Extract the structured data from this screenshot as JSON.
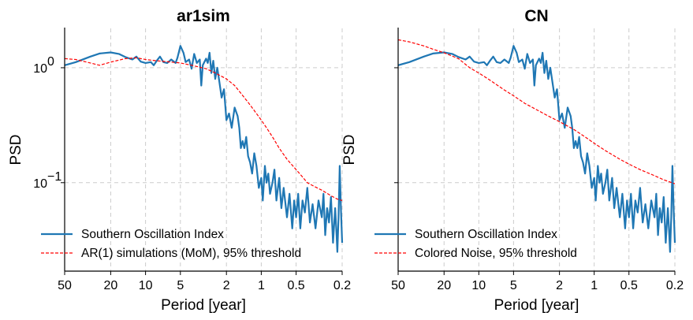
{
  "chart_data": [
    {
      "type": "line",
      "title": "ar1sim",
      "xlabel": "Period [year]",
      "ylabel": "PSD",
      "x_scale": "log",
      "y_scale": "log",
      "x_reversed": true,
      "xlim": [
        50,
        0.2
      ],
      "ylim": [
        0.017,
        2.2
      ],
      "x_ticks": [
        50,
        20,
        10,
        5,
        2,
        1,
        0.5,
        0.2
      ],
      "x_tick_labels": [
        "50",
        "20",
        "10",
        "5",
        "2",
        "1",
        "0.5",
        "0.2"
      ],
      "y_ticks": [
        1,
        0.1
      ],
      "y_tick_labels": [
        {
          "base": "10",
          "exp": "0"
        },
        {
          "base": "10",
          "exp": "−1"
        }
      ],
      "grid": true,
      "legend_position": "lower-left",
      "series": [
        {
          "name": "Southern Oscillation Index",
          "style": "solid",
          "color": "#1f77b4",
          "points": [
            [
              50,
              1.05
            ],
            [
              40,
              1.12
            ],
            [
              30,
              1.25
            ],
            [
              25,
              1.33
            ],
            [
              20,
              1.36
            ],
            [
              17,
              1.32
            ],
            [
              15,
              1.24
            ],
            [
              13,
              1.18
            ],
            [
              12,
              1.25
            ],
            [
              11,
              1.13
            ],
            [
              10,
              1.1
            ],
            [
              9,
              1.12
            ],
            [
              8.5,
              1.05
            ],
            [
              8,
              1.15
            ],
            [
              7.5,
              1.25
            ],
            [
              7,
              1.12
            ],
            [
              6.5,
              1.1
            ],
            [
              6,
              1.18
            ],
            [
              5.5,
              1.1
            ],
            [
              5.3,
              1.22
            ],
            [
              5,
              1.55
            ],
            [
              4.7,
              1.35
            ],
            [
              4.5,
              1.12
            ],
            [
              4.2,
              1.18
            ],
            [
              4,
              0.98
            ],
            [
              3.8,
              1.32
            ],
            [
              3.6,
              1.1
            ],
            [
              3.4,
              1.18
            ],
            [
              3.3,
              0.7
            ],
            [
              3.2,
              1.05
            ],
            [
              3,
              1.2
            ],
            [
              2.9,
              1.1
            ],
            [
              2.8,
              1.35
            ],
            [
              2.7,
              0.9
            ],
            [
              2.6,
              1.15
            ],
            [
              2.5,
              0.8
            ],
            [
              2.4,
              1.0
            ],
            [
              2.3,
              0.75
            ],
            [
              2.2,
              0.55
            ],
            [
              2.1,
              0.65
            ],
            [
              2.0,
              0.35
            ],
            [
              1.9,
              0.4
            ],
            [
              1.8,
              0.3
            ],
            [
              1.7,
              0.45
            ],
            [
              1.6,
              0.38
            ],
            [
              1.55,
              0.3
            ],
            [
              1.5,
              0.2
            ],
            [
              1.45,
              0.23
            ],
            [
              1.4,
              0.2
            ],
            [
              1.35,
              0.25
            ],
            [
              1.3,
              0.17
            ],
            [
              1.25,
              0.15
            ],
            [
              1.2,
              0.12
            ],
            [
              1.15,
              0.18
            ],
            [
              1.1,
              0.14
            ],
            [
              1.05,
              0.09
            ],
            [
              1.0,
              0.11
            ],
            [
              0.97,
              0.07
            ],
            [
              0.93,
              0.14
            ],
            [
              0.9,
              0.1
            ],
            [
              0.87,
              0.12
            ],
            [
              0.84,
              0.08
            ],
            [
              0.8,
              0.1
            ],
            [
              0.77,
              0.13
            ],
            [
              0.74,
              0.07
            ],
            [
              0.7,
              0.11
            ],
            [
              0.67,
              0.06
            ],
            [
              0.64,
              0.09
            ],
            [
              0.6,
              0.05
            ],
            [
              0.57,
              0.08
            ],
            [
              0.54,
              0.04
            ],
            [
              0.52,
              0.07
            ],
            [
              0.5,
              0.05
            ],
            [
              0.48,
              0.08
            ],
            [
              0.46,
              0.04
            ],
            [
              0.44,
              0.07
            ],
            [
              0.42,
              0.055
            ],
            [
              0.4,
              0.09
            ],
            [
              0.38,
              0.045
            ],
            [
              0.36,
              0.065
            ],
            [
              0.34,
              0.04
            ],
            [
              0.32,
              0.07
            ],
            [
              0.3,
              0.05
            ],
            [
              0.29,
              0.08
            ],
            [
              0.28,
              0.035
            ],
            [
              0.27,
              0.06
            ],
            [
              0.26,
              0.045
            ],
            [
              0.25,
              0.075
            ],
            [
              0.24,
              0.03
            ],
            [
              0.23,
              0.06
            ],
            [
              0.225,
              0.04
            ],
            [
              0.22,
              0.025
            ],
            [
              0.215,
              0.05
            ],
            [
              0.21,
              0.14
            ],
            [
              0.205,
              0.06
            ],
            [
              0.2,
              0.03
            ]
          ]
        },
        {
          "name": "AR(1) simulations (MoM), 95% threshold",
          "style": "dashed",
          "color": "#ff0000",
          "points": [
            [
              50,
              1.2
            ],
            [
              40,
              1.18
            ],
            [
              30,
              1.1
            ],
            [
              25,
              1.05
            ],
            [
              20,
              1.12
            ],
            [
              15,
              1.2
            ],
            [
              12,
              1.22
            ],
            [
              10,
              1.18
            ],
            [
              8,
              1.15
            ],
            [
              6,
              1.12
            ],
            [
              5,
              1.1
            ],
            [
              4,
              1.05
            ],
            [
              3,
              0.98
            ],
            [
              2.5,
              0.9
            ],
            [
              2,
              0.8
            ],
            [
              1.7,
              0.7
            ],
            [
              1.5,
              0.6
            ],
            [
              1.3,
              0.5
            ],
            [
              1.1,
              0.4
            ],
            [
              1.0,
              0.35
            ],
            [
              0.9,
              0.3
            ],
            [
              0.8,
              0.25
            ],
            [
              0.7,
              0.2
            ],
            [
              0.6,
              0.16
            ],
            [
              0.5,
              0.13
            ],
            [
              0.45,
              0.115
            ],
            [
              0.4,
              0.1
            ],
            [
              0.35,
              0.093
            ],
            [
              0.3,
              0.086
            ],
            [
              0.25,
              0.077
            ],
            [
              0.22,
              0.072
            ],
            [
              0.2,
              0.07
            ]
          ]
        }
      ]
    },
    {
      "type": "line",
      "title": "CN",
      "xlabel": "Period [year]",
      "ylabel": "PSD",
      "x_scale": "log",
      "y_scale": "log",
      "x_reversed": true,
      "xlim": [
        50,
        0.2
      ],
      "ylim": [
        0.017,
        2.2
      ],
      "x_ticks": [
        50,
        20,
        10,
        5,
        2,
        1,
        0.5,
        0.2
      ],
      "x_tick_labels": [
        "50",
        "20",
        "10",
        "5",
        "2",
        "1",
        "0.5",
        "0.2"
      ],
      "y_ticks": [
        1,
        0.1
      ],
      "grid": true,
      "legend_position": "lower-left",
      "series": [
        {
          "name": "Southern Oscillation Index",
          "style": "solid",
          "color": "#1f77b4",
          "points": [
            [
              50,
              1.05
            ],
            [
              40,
              1.12
            ],
            [
              30,
              1.25
            ],
            [
              25,
              1.33
            ],
            [
              20,
              1.36
            ],
            [
              17,
              1.32
            ],
            [
              15,
              1.24
            ],
            [
              13,
              1.18
            ],
            [
              12,
              1.25
            ],
            [
              11,
              1.13
            ],
            [
              10,
              1.1
            ],
            [
              9,
              1.12
            ],
            [
              8.5,
              1.05
            ],
            [
              8,
              1.15
            ],
            [
              7.5,
              1.25
            ],
            [
              7,
              1.12
            ],
            [
              6.5,
              1.1
            ],
            [
              6,
              1.18
            ],
            [
              5.5,
              1.1
            ],
            [
              5.3,
              1.22
            ],
            [
              5,
              1.55
            ],
            [
              4.7,
              1.35
            ],
            [
              4.5,
              1.12
            ],
            [
              4.2,
              1.18
            ],
            [
              4,
              0.98
            ],
            [
              3.8,
              1.32
            ],
            [
              3.6,
              1.1
            ],
            [
              3.4,
              1.18
            ],
            [
              3.3,
              0.7
            ],
            [
              3.2,
              1.05
            ],
            [
              3,
              1.2
            ],
            [
              2.9,
              1.1
            ],
            [
              2.8,
              1.35
            ],
            [
              2.7,
              0.9
            ],
            [
              2.6,
              1.15
            ],
            [
              2.5,
              0.8
            ],
            [
              2.4,
              1.0
            ],
            [
              2.3,
              0.75
            ],
            [
              2.2,
              0.55
            ],
            [
              2.1,
              0.65
            ],
            [
              2.0,
              0.35
            ],
            [
              1.9,
              0.4
            ],
            [
              1.8,
              0.3
            ],
            [
              1.7,
              0.45
            ],
            [
              1.6,
              0.38
            ],
            [
              1.55,
              0.3
            ],
            [
              1.5,
              0.2
            ],
            [
              1.45,
              0.23
            ],
            [
              1.4,
              0.2
            ],
            [
              1.35,
              0.25
            ],
            [
              1.3,
              0.17
            ],
            [
              1.25,
              0.15
            ],
            [
              1.2,
              0.12
            ],
            [
              1.15,
              0.18
            ],
            [
              1.1,
              0.14
            ],
            [
              1.05,
              0.09
            ],
            [
              1.0,
              0.11
            ],
            [
              0.97,
              0.07
            ],
            [
              0.93,
              0.14
            ],
            [
              0.9,
              0.1
            ],
            [
              0.87,
              0.12
            ],
            [
              0.84,
              0.08
            ],
            [
              0.8,
              0.1
            ],
            [
              0.77,
              0.13
            ],
            [
              0.74,
              0.07
            ],
            [
              0.7,
              0.11
            ],
            [
              0.67,
              0.06
            ],
            [
              0.64,
              0.09
            ],
            [
              0.6,
              0.05
            ],
            [
              0.57,
              0.08
            ],
            [
              0.54,
              0.04
            ],
            [
              0.52,
              0.07
            ],
            [
              0.5,
              0.05
            ],
            [
              0.48,
              0.08
            ],
            [
              0.46,
              0.04
            ],
            [
              0.44,
              0.07
            ],
            [
              0.42,
              0.055
            ],
            [
              0.4,
              0.09
            ],
            [
              0.38,
              0.045
            ],
            [
              0.36,
              0.065
            ],
            [
              0.34,
              0.04
            ],
            [
              0.32,
              0.07
            ],
            [
              0.3,
              0.05
            ],
            [
              0.29,
              0.08
            ],
            [
              0.28,
              0.035
            ],
            [
              0.27,
              0.06
            ],
            [
              0.26,
              0.045
            ],
            [
              0.25,
              0.075
            ],
            [
              0.24,
              0.03
            ],
            [
              0.23,
              0.06
            ],
            [
              0.225,
              0.04
            ],
            [
              0.22,
              0.025
            ],
            [
              0.215,
              0.05
            ],
            [
              0.21,
              0.14
            ],
            [
              0.205,
              0.06
            ],
            [
              0.2,
              0.03
            ]
          ]
        },
        {
          "name": "Colored Noise, 95% threshold",
          "style": "dashed",
          "color": "#ff0000",
          "points": [
            [
              50,
              1.75
            ],
            [
              40,
              1.68
            ],
            [
              30,
              1.55
            ],
            [
              25,
              1.45
            ],
            [
              20,
              1.35
            ],
            [
              15,
              1.2
            ],
            [
              12,
              1.0
            ],
            [
              10,
              0.9
            ],
            [
              8,
              0.78
            ],
            [
              6,
              0.64
            ],
            [
              5,
              0.57
            ],
            [
              4,
              0.49
            ],
            [
              3,
              0.42
            ],
            [
              2.5,
              0.38
            ],
            [
              2,
              0.34
            ],
            [
              1.5,
              0.29
            ],
            [
              1.2,
              0.25
            ],
            [
              1,
              0.22
            ],
            [
              0.8,
              0.19
            ],
            [
              0.6,
              0.16
            ],
            [
              0.5,
              0.145
            ],
            [
              0.4,
              0.13
            ],
            [
              0.3,
              0.115
            ],
            [
              0.25,
              0.106
            ],
            [
              0.2,
              0.098
            ]
          ]
        }
      ]
    }
  ]
}
